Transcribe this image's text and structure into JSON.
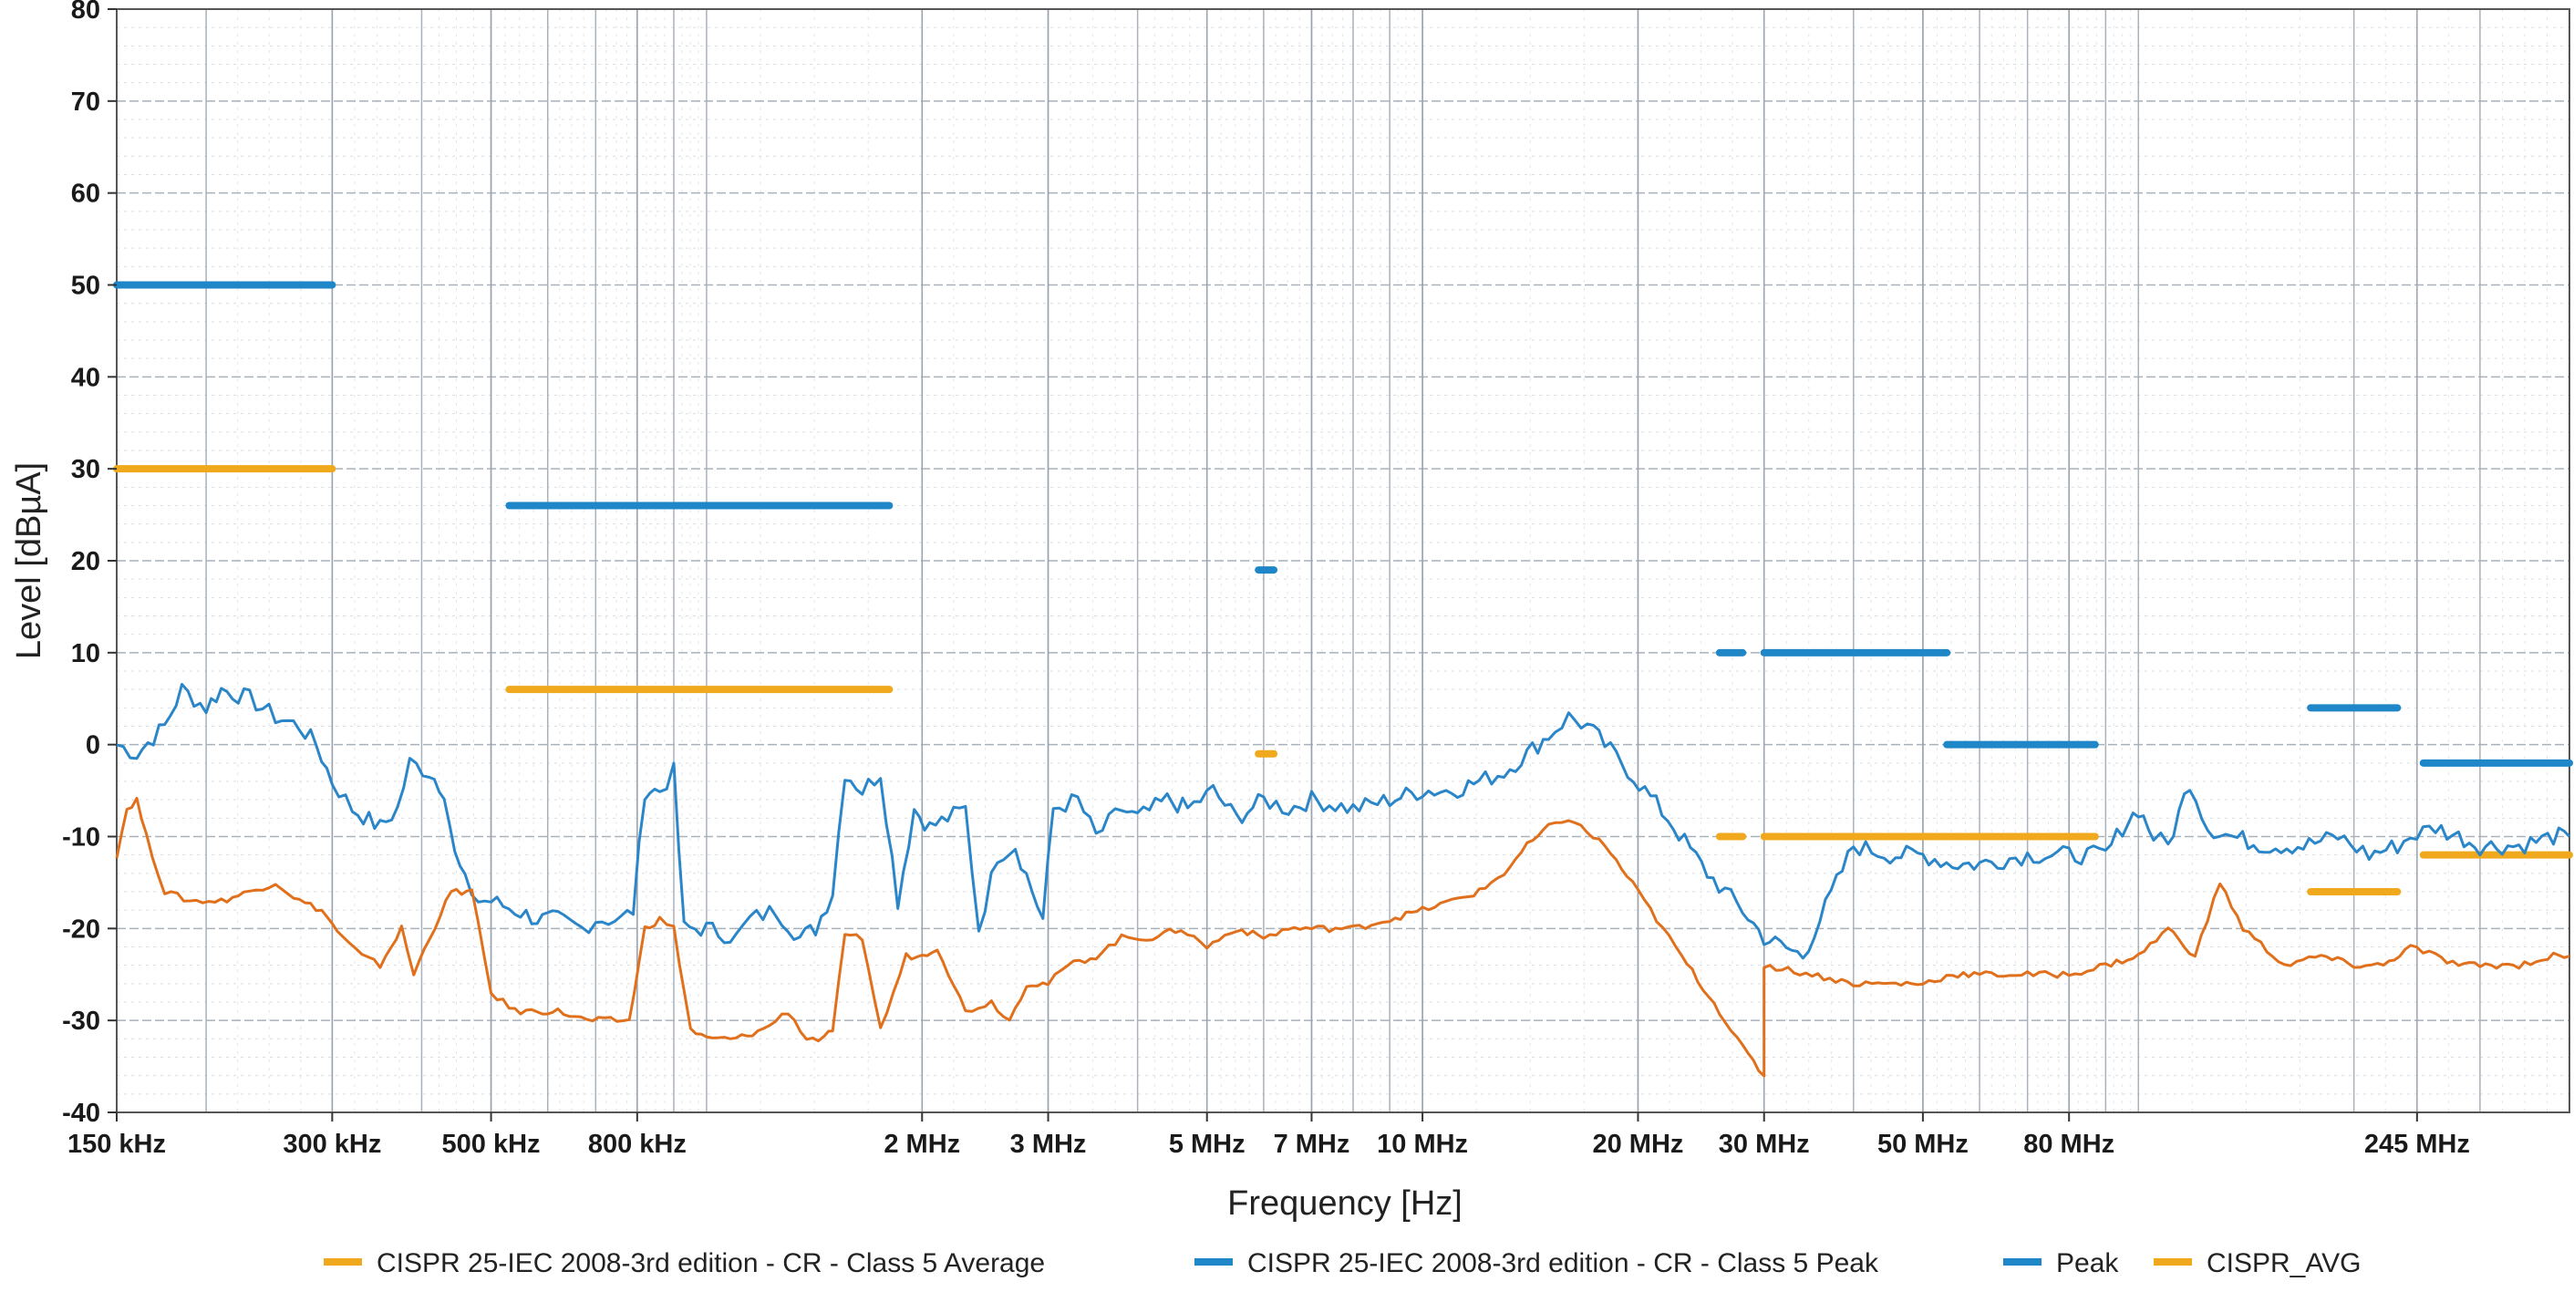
{
  "chart_data": {
    "type": "line",
    "xlabel": "Frequency [Hz]",
    "ylabel": "Level [dBµA]",
    "x_scale": "log",
    "xlim_hz": [
      150000,
      400000000
    ],
    "ylim": [
      -40,
      80
    ],
    "grid": true,
    "legend_position": "bottom",
    "colors": {
      "limit_avg": "#f0a81c",
      "limit_peak": "#1f86c8",
      "peak": "#1f86c8",
      "avg": "#f0a81c",
      "meas_avg": "#e0701c",
      "meas_peak": "#2a86c8"
    },
    "y_ticks": [
      80,
      70,
      60,
      50,
      40,
      30,
      20,
      10,
      0,
      -10,
      -20,
      -30,
      -40
    ],
    "x_ticks": [
      {
        "hz": 150000,
        "label": "150 kHz"
      },
      {
        "hz": 300000,
        "label": "300 kHz"
      },
      {
        "hz": 500000,
        "label": "500 kHz"
      },
      {
        "hz": 800000,
        "label": "800 kHz"
      },
      {
        "hz": 2000000,
        "label": "2 MHz"
      },
      {
        "hz": 3000000,
        "label": "3 MHz"
      },
      {
        "hz": 5000000,
        "label": "5 MHz"
      },
      {
        "hz": 7000000,
        "label": "7 MHz"
      },
      {
        "hz": 10000000,
        "label": "10 MHz"
      },
      {
        "hz": 20000000,
        "label": "20 MHz"
      },
      {
        "hz": 30000000,
        "label": "30 MHz"
      },
      {
        "hz": 50000000,
        "label": "50 MHz"
      },
      {
        "hz": 80000000,
        "label": "80 MHz"
      },
      {
        "hz": 245000000,
        "label": "245 MHz"
      }
    ],
    "legend": [
      {
        "name": "CISPR 25-IEC 2008-3rd edition - CR - Class 5 Average",
        "color": "#f0a81c"
      },
      {
        "name": "CISPR 25-IEC 2008-3rd edition - CR - Class 5 Peak",
        "color": "#1f86c8"
      },
      {
        "name": "Peak",
        "color": "#1f86c8"
      },
      {
        "name": "CISPR_AVG",
        "color": "#f0a81c"
      }
    ],
    "limit_segments": {
      "peak": [
        {
          "f1": 150000,
          "f2": 300000,
          "level": 50
        },
        {
          "f1": 530000,
          "f2": 1800000,
          "level": 26
        },
        {
          "f1": 5900000,
          "f2": 6200000,
          "level": 19
        },
        {
          "f1": 26000000,
          "f2": 28000000,
          "level": 10
        },
        {
          "f1": 30000000,
          "f2": 54000000,
          "level": 10
        },
        {
          "f1": 54000000,
          "f2": 87000000,
          "level": 0
        },
        {
          "f1": 174000000,
          "f2": 230000000,
          "level": 4
        },
        {
          "f1": 250000000,
          "f2": 400000000,
          "level": -2
        }
      ],
      "avg": [
        {
          "f1": 150000,
          "f2": 300000,
          "level": 30
        },
        {
          "f1": 530000,
          "f2": 1800000,
          "level": 6
        },
        {
          "f1": 5900000,
          "f2": 6200000,
          "level": -1
        },
        {
          "f1": 26000000,
          "f2": 28000000,
          "level": -10
        },
        {
          "f1": 30000000,
          "f2": 87000000,
          "level": -10
        },
        {
          "f1": 174000000,
          "f2": 230000000,
          "level": -16
        },
        {
          "f1": 250000000,
          "f2": 400000000,
          "level": -12
        }
      ]
    },
    "series": [
      {
        "name": "Peak",
        "x_hz": [
          150000,
          160000,
          175000,
          185000,
          200000,
          210000,
          230000,
          250000,
          270000,
          285000,
          300000,
          320000,
          350000,
          370000,
          385000,
          410000,
          430000,
          445000,
          460000,
          480000,
          500000,
          540000,
          580000,
          620000,
          670000,
          700000,
          760000,
          790000,
          820000,
          860000,
          900000,
          930000,
          1000000,
          1100000,
          1150000,
          1250000,
          1350000,
          1420000,
          1500000,
          1560000,
          1650000,
          1750000,
          1850000,
          1950000,
          2050000,
          2300000,
          2400000,
          2550000,
          2700000,
          2950000,
          3050000,
          3300000,
          3500000,
          3800000,
          4000000,
          4400000,
          4700000,
          5100000,
          5500000,
          6000000,
          6500000,
          7000000,
          8000000,
          9000000,
          10000000,
          11000000,
          12000000,
          13000000,
          14000000,
          15000000,
          16000000,
          17000000,
          19000000,
          22000000,
          25000000,
          28000000,
          30000000,
          34000000,
          40000000,
          45000000,
          50000000,
          55000000,
          60000000,
          70000000,
          80000000,
          90000000,
          95000000,
          100000000,
          105000000,
          110000000,
          118000000,
          125000000,
          135000000,
          150000000,
          170000000,
          190000000,
          210000000,
          230000000,
          240000000,
          260000000,
          280000000,
          300000000,
          340000000,
          380000000,
          400000000
        ],
        "y": [
          0,
          -1,
          2,
          6,
          4,
          6,
          5,
          3,
          2,
          0,
          -4,
          -7,
          -9,
          -7,
          -2,
          -3,
          -5,
          -12,
          -15,
          -17,
          -17,
          -18,
          -19,
          -19,
          -20,
          -19,
          -19,
          -18,
          -5,
          -5,
          -3,
          -20,
          -20,
          -21,
          -19,
          -18,
          -21,
          -20,
          -16,
          -3,
          -5,
          -3,
          -17,
          -7,
          -9,
          -7,
          -20,
          -12,
          -11,
          -19,
          -7,
          -6,
          -10,
          -7,
          -8,
          -6,
          -7,
          -5,
          -8,
          -6,
          -7,
          -6,
          -7,
          -6,
          -5,
          -5,
          -4,
          -3,
          -1,
          1,
          3,
          2,
          -2,
          -8,
          -14,
          -18,
          -21,
          -23,
          -11,
          -12,
          -12,
          -13,
          -13,
          -12,
          -12,
          -12,
          -9,
          -7,
          -10,
          -11,
          -4,
          -9,
          -10,
          -11,
          -11,
          -10,
          -12,
          -11,
          -10,
          -9,
          -10,
          -11,
          -11,
          -10,
          -10
        ]
      },
      {
        "name": "CISPR_AVG",
        "x_hz": [
          150000,
          155000,
          160000,
          165000,
          175000,
          190000,
          210000,
          230000,
          250000,
          270000,
          290000,
          310000,
          330000,
          350000,
          375000,
          390000,
          410000,
          440000,
          470000,
          500000,
          540000,
          580000,
          620000,
          680000,
          720000,
          780000,
          820000,
          860000,
          900000,
          950000,
          1000000,
          1100000,
          1200000,
          1300000,
          1380000,
          1460000,
          1500000,
          1560000,
          1650000,
          1750000,
          1900000,
          2000000,
          2100000,
          2300000,
          2500000,
          2650000,
          2800000,
          3000000,
          3200000,
          3500000,
          3800000,
          4200000,
          4600000,
          5000000,
          5500000,
          6000000,
          6500000,
          7000000,
          8000000,
          9000000,
          10000000,
          11000000,
          12000000,
          13000000,
          14000000,
          15000000,
          16000000,
          18000000,
          20000000,
          23000000,
          26000000,
          28000000,
          30000000,
          30000000,
          35000000,
          40000000,
          45000000,
          50000000,
          55000000,
          60000000,
          70000000,
          80000000,
          90000000,
          100000000,
          110000000,
          120000000,
          130000000,
          140000000,
          160000000,
          180000000,
          200000000,
          220000000,
          240000000,
          260000000,
          280000000,
          300000000,
          340000000,
          380000000,
          400000000
        ],
        "y": [
          -12,
          -7,
          -6,
          -10,
          -16,
          -17,
          -17,
          -16,
          -15,
          -17,
          -18,
          -21,
          -23,
          -24,
          -20,
          -25,
          -21,
          -16,
          -16,
          -27,
          -29,
          -29,
          -29,
          -30,
          -30,
          -30,
          -20,
          -19,
          -20,
          -31,
          -32,
          -32,
          -31,
          -29,
          -32,
          -32,
          -31,
          -21,
          -21,
          -31,
          -23,
          -23,
          -22,
          -29,
          -28,
          -30,
          -26,
          -26,
          -24,
          -23,
          -21,
          -21,
          -20,
          -22,
          -20,
          -21,
          -20,
          -20,
          -20,
          -19,
          -18,
          -17,
          -16,
          -14,
          -11,
          -9,
          -8,
          -11,
          -16,
          -23,
          -29,
          -33,
          -36,
          -24,
          -25,
          -26,
          -26,
          -26,
          -25,
          -25,
          -25,
          -25,
          -24,
          -23,
          -20,
          -23,
          -15,
          -20,
          -24,
          -23,
          -24,
          -24,
          -22,
          -23,
          -24,
          -24,
          -24,
          -23,
          -23
        ]
      }
    ]
  }
}
